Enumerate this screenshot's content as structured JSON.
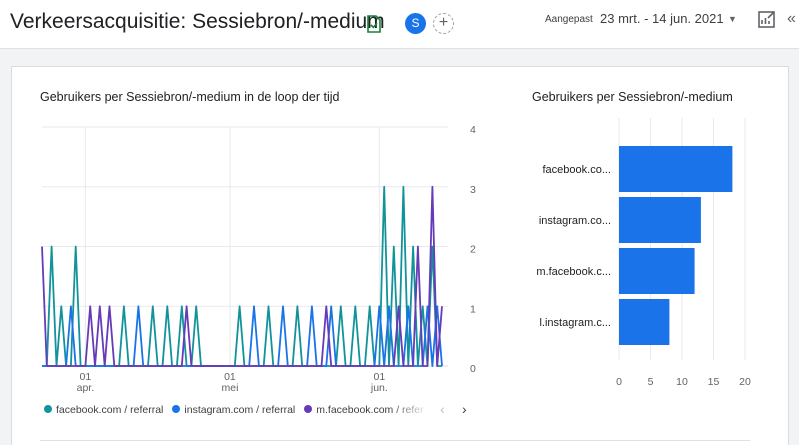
{
  "header": {
    "title": "Verkeersacquisitie: Sessiebron/-medium",
    "avatar_letter": "S",
    "add_symbol": "+",
    "date_label": "Aangepast",
    "date_range": "23 mrt. - 14 jun. 2021"
  },
  "line_chart": {
    "title": "Gebruikers per Sessiebron/-medium in de loop der tijd",
    "y_ticks": [
      "4",
      "3",
      "2",
      "1",
      "0"
    ],
    "x_ticks": [
      {
        "day": "01",
        "month": "apr."
      },
      {
        "day": "01",
        "month": "mei"
      },
      {
        "day": "01",
        "month": "jun."
      }
    ],
    "legend": [
      {
        "label": "facebook.com / referral",
        "color": "#12939a"
      },
      {
        "label": "instagram.com / referral",
        "color": "#1a73e8"
      },
      {
        "label": "m.facebook.com / referral",
        "color": "#673ab7"
      }
    ]
  },
  "bar_chart": {
    "title": "Gebruikers per Sessiebron/-medium",
    "bar_color": "#1a73e8",
    "x_ticks": [
      "0",
      "5",
      "10",
      "15",
      "20"
    ]
  },
  "chart_data": [
    {
      "type": "line",
      "title": "Gebruikers per Sessiebron/-medium in de loop der tijd",
      "x_range": [
        "2021-03-23",
        "2021-06-14"
      ],
      "ylim": [
        0,
        4
      ],
      "grid": true,
      "legend_position": "bottom",
      "series": [
        {
          "name": "facebook.com / referral",
          "color": "#12939a",
          "points": [
            [
              "2021-03-25",
              2
            ],
            [
              "2021-03-27",
              1
            ],
            [
              "2021-03-30",
              2
            ],
            [
              "2021-04-09",
              1
            ],
            [
              "2021-04-15",
              1
            ],
            [
              "2021-04-18",
              1
            ],
            [
              "2021-04-21",
              1
            ],
            [
              "2021-04-24",
              1
            ],
            [
              "2021-05-03",
              1
            ],
            [
              "2021-05-09",
              1
            ],
            [
              "2021-05-15",
              1
            ],
            [
              "2021-05-24",
              1
            ],
            [
              "2021-05-27",
              1
            ],
            [
              "2021-05-30",
              1
            ],
            [
              "2021-06-02",
              3
            ],
            [
              "2021-06-04",
              2
            ],
            [
              "2021-06-06",
              3
            ],
            [
              "2021-06-08",
              2
            ],
            [
              "2021-06-10",
              1
            ],
            [
              "2021-06-12",
              2
            ]
          ]
        },
        {
          "name": "instagram.com / referral",
          "color": "#1a73e8",
          "points": [
            [
              "2021-03-29",
              1
            ],
            [
              "2021-04-12",
              1
            ],
            [
              "2021-05-06",
              1
            ],
            [
              "2021-05-12",
              1
            ],
            [
              "2021-05-18",
              1
            ],
            [
              "2021-05-22",
              1
            ],
            [
              "2021-06-01",
              1
            ],
            [
              "2021-06-03",
              1
            ],
            [
              "2021-06-07",
              1
            ],
            [
              "2021-06-11",
              1
            ],
            [
              "2021-06-13",
              1
            ]
          ]
        },
        {
          "name": "m.facebook.com / referral",
          "color": "#673ab7",
          "points": [
            [
              "2021-03-23",
              2
            ],
            [
              "2021-04-02",
              1
            ],
            [
              "2021-04-04",
              1
            ],
            [
              "2021-04-06",
              1
            ],
            [
              "2021-04-22",
              1
            ],
            [
              "2021-05-21",
              1
            ],
            [
              "2021-06-05",
              1
            ],
            [
              "2021-06-09",
              2
            ],
            [
              "2021-06-12",
              3
            ],
            [
              "2021-06-14",
              1
            ]
          ]
        }
      ]
    },
    {
      "type": "bar",
      "orientation": "horizontal",
      "title": "Gebruikers per Sessiebron/-medium",
      "categories": [
        "facebook.co...",
        "instagram.co...",
        "m.facebook.c...",
        "l.instagram.c..."
      ],
      "values": [
        18,
        13,
        12,
        8
      ],
      "xlim": [
        0,
        20
      ],
      "grid": true
    }
  ]
}
